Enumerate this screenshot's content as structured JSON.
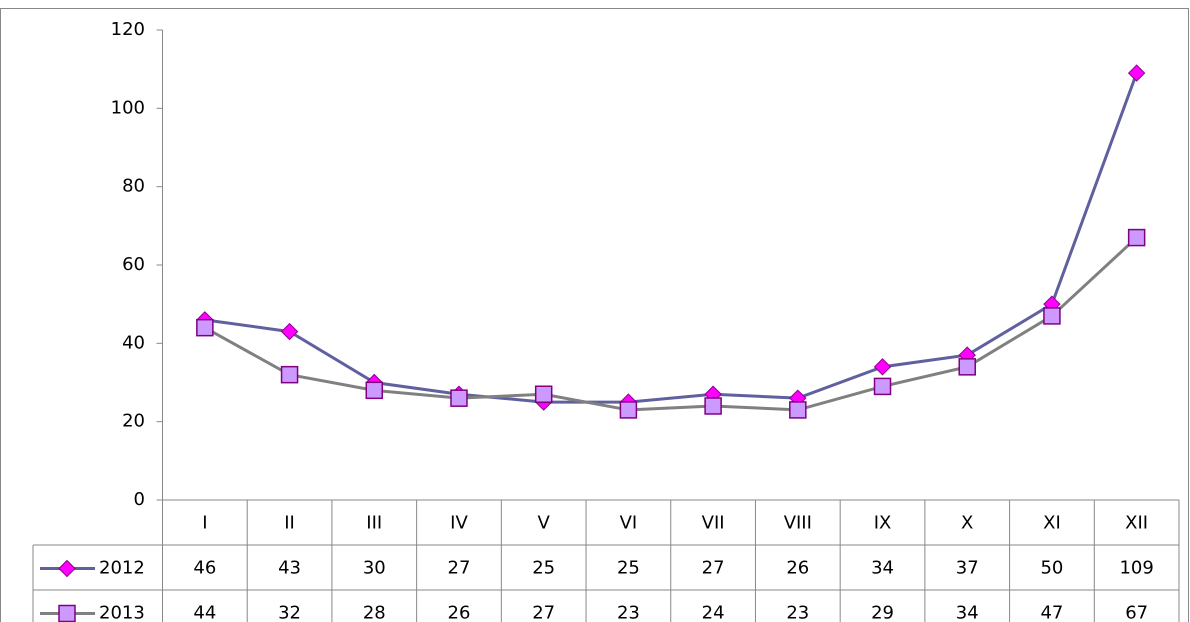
{
  "chart_data": {
    "type": "line",
    "categories": [
      "I",
      "II",
      "III",
      "IV",
      "V",
      "VI",
      "VII",
      "VIII",
      "IX",
      "X",
      "XI",
      "XII"
    ],
    "series": [
      {
        "name": "2012",
        "color": "#6060a0",
        "marker": "diamond",
        "marker_color": "#ff00ff",
        "marker_edge": "#8b008b",
        "values": [
          46,
          43,
          30,
          27,
          25,
          25,
          27,
          26,
          34,
          37,
          50,
          109
        ]
      },
      {
        "name": "2013",
        "color": "#808080",
        "marker": "square",
        "marker_color": "#cc99ff",
        "marker_edge": "#800080",
        "values": [
          44,
          32,
          28,
          26,
          27,
          23,
          24,
          23,
          29,
          34,
          47,
          67
        ]
      }
    ],
    "ylim": [
      0,
      120
    ],
    "yticks": [
      0,
      20,
      40,
      60,
      80,
      100,
      120
    ],
    "data_table": true
  }
}
